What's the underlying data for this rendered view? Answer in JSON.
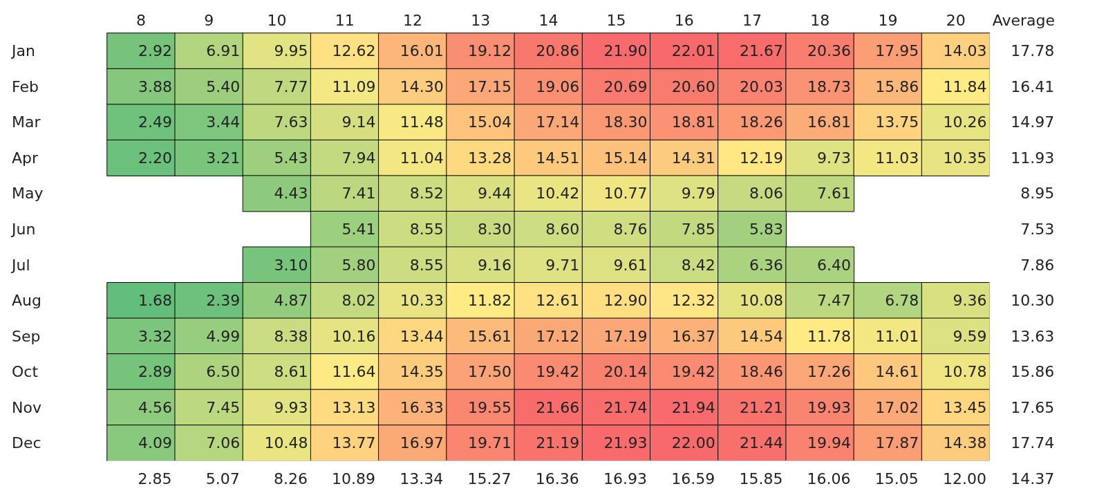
{
  "chart_data": {
    "type": "heatmap",
    "categories": [
      "8",
      "9",
      "10",
      "11",
      "12",
      "13",
      "14",
      "15",
      "16",
      "17",
      "18",
      "19",
      "20",
      "Average"
    ],
    "y_categories": [
      "Jan",
      "Feb",
      "Mar",
      "Apr",
      "May",
      "Jun",
      "Jul",
      "Aug",
      "Sep",
      "Oct",
      "Nov",
      "Dec",
      null
    ],
    "cells": [
      [
        2.92,
        6.91,
        9.95,
        12.62,
        16.01,
        19.12,
        20.86,
        21.9,
        22.01,
        21.67,
        20.36,
        17.95,
        14.03,
        17.78
      ],
      [
        3.88,
        5.4,
        7.77,
        11.09,
        14.3,
        17.15,
        19.06,
        20.69,
        20.6,
        20.03,
        18.73,
        15.86,
        11.84,
        16.41
      ],
      [
        2.49,
        3.44,
        7.63,
        9.14,
        11.48,
        15.04,
        17.14,
        18.3,
        18.81,
        18.26,
        16.81,
        13.75,
        10.26,
        14.97
      ],
      [
        2.2,
        3.21,
        5.43,
        7.94,
        11.04,
        13.28,
        14.51,
        15.14,
        14.31,
        12.19,
        9.73,
        11.03,
        10.35,
        11.93
      ],
      [
        null,
        null,
        4.43,
        7.41,
        8.52,
        9.44,
        10.42,
        10.77,
        9.79,
        8.06,
        7.61,
        null,
        null,
        8.95
      ],
      [
        null,
        null,
        null,
        5.41,
        8.55,
        8.3,
        8.6,
        8.76,
        7.85,
        5.83,
        null,
        null,
        null,
        7.53
      ],
      [
        null,
        null,
        3.1,
        5.8,
        8.55,
        9.16,
        9.71,
        9.61,
        8.42,
        6.36,
        6.4,
        null,
        null,
        7.86
      ],
      [
        1.68,
        2.39,
        4.87,
        8.02,
        10.33,
        11.82,
        12.61,
        12.9,
        12.32,
        10.08,
        7.47,
        6.78,
        9.36,
        10.3
      ],
      [
        3.32,
        4.99,
        8.38,
        10.16,
        13.44,
        15.61,
        17.12,
        17.19,
        16.37,
        14.54,
        11.78,
        11.01,
        9.59,
        13.63
      ],
      [
        2.89,
        6.5,
        8.61,
        11.64,
        14.35,
        17.5,
        19.42,
        20.14,
        19.42,
        18.46,
        17.26,
        14.61,
        10.78,
        15.86
      ],
      [
        4.56,
        7.45,
        9.93,
        13.13,
        16.33,
        19.55,
        21.66,
        21.74,
        21.94,
        21.21,
        19.93,
        17.02,
        13.45,
        17.65
      ],
      [
        4.09,
        7.06,
        10.48,
        13.77,
        16.97,
        19.71,
        21.19,
        21.93,
        22.0,
        21.44,
        19.94,
        17.87,
        14.38,
        17.74
      ],
      [
        2.85,
        5.07,
        8.26,
        10.89,
        13.34,
        15.27,
        16.36,
        16.93,
        16.59,
        15.85,
        16.06,
        15.05,
        12.0,
        14.37
      ]
    ],
    "cell_labels": [
      [
        "2.92",
        "6.91",
        "9.95",
        "12.62",
        "16.01",
        "19.12",
        "20.86",
        "21.90",
        "22.01",
        "21.67",
        "20.36",
        "17.95",
        "14.03",
        "17.78"
      ],
      [
        "3.88",
        "5.40",
        "7.77",
        "11.09",
        "14.30",
        "17.15",
        "19.06",
        "20.69",
        "20.60",
        "20.03",
        "18.73",
        "15.86",
        "11.84",
        "16.41"
      ],
      [
        "2.49",
        "3.44",
        "7.63",
        "9.14",
        "11.48",
        "15.04",
        "17.14",
        "18.30",
        "18.81",
        "18.26",
        "16.81",
        "13.75",
        "10.26",
        "14.97"
      ],
      [
        "2.20",
        "3.21",
        "5.43",
        "7.94",
        "11.04",
        "13.28",
        "14.51",
        "15.14",
        "14.31",
        "12.19",
        "9.73",
        "11.03",
        "10.35",
        "11.93"
      ],
      [
        null,
        null,
        "4.43",
        "7.41",
        "8.52",
        "9.44",
        "10.42",
        "10.77",
        "9.79",
        "8.06",
        "7.61",
        null,
        null,
        "8.95"
      ],
      [
        null,
        null,
        null,
        "5.41",
        "8.55",
        "8.30",
        "8.60",
        "8.76",
        "7.85",
        "5.83",
        null,
        null,
        null,
        "7.53"
      ],
      [
        null,
        null,
        "3.10",
        "5.80",
        "8.55",
        "9.16",
        "9.71",
        "9.61",
        "8.42",
        "6.36",
        "6.40",
        null,
        null,
        "7.86"
      ],
      [
        "1.68",
        "2.39",
        "4.87",
        "8.02",
        "10.33",
        "11.82",
        "12.61",
        "12.90",
        "12.32",
        "10.08",
        "7.47",
        "6.78",
        "9.36",
        "10.30"
      ],
      [
        "3.32",
        "4.99",
        "8.38",
        "10.16",
        "13.44",
        "15.61",
        "17.12",
        "17.19",
        "16.37",
        "14.54",
        "11.78",
        "11.01",
        "9.59",
        "13.63"
      ],
      [
        "2.89",
        "6.50",
        "8.61",
        "11.64",
        "14.35",
        "17.50",
        "19.42",
        "20.14",
        "19.42",
        "18.46",
        "17.26",
        "14.61",
        "10.78",
        "15.86"
      ],
      [
        "4.56",
        "7.45",
        "9.93",
        "13.13",
        "16.33",
        "19.55",
        "21.66",
        "21.74",
        "21.94",
        "21.21",
        "19.93",
        "17.02",
        "13.45",
        "17.65"
      ],
      [
        "4.09",
        "7.06",
        "10.48",
        "13.77",
        "16.97",
        "19.71",
        "21.19",
        "21.93",
        "22.00",
        "21.44",
        "19.94",
        "17.87",
        "14.38",
        "17.74"
      ],
      [
        "2.85",
        "5.07",
        "8.26",
        "10.89",
        "13.34",
        "15.27",
        "16.36",
        "16.93",
        "16.59",
        "15.85",
        "16.06",
        "15.05",
        "12.00",
        "14.37"
      ]
    ]
  }
}
